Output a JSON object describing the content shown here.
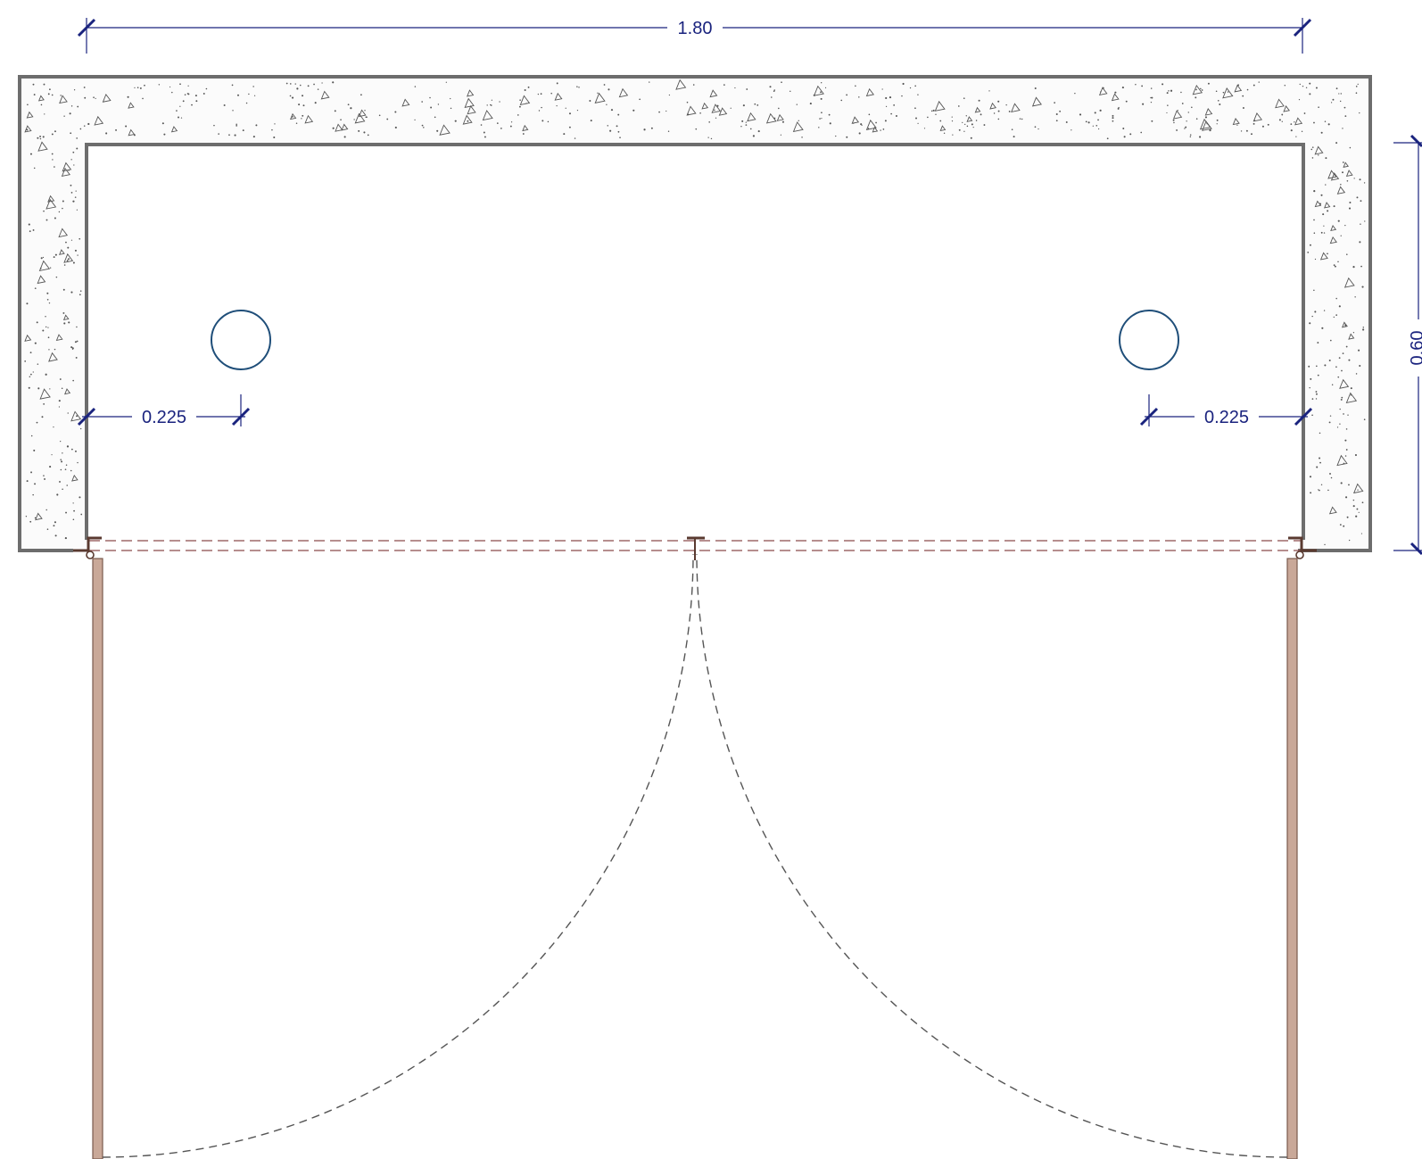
{
  "colors": {
    "dimension": "#1a237e",
    "wall": "#6d6d6d",
    "hatch": "#555555",
    "sink_outline": "#1f4e79",
    "door_leaf_fill": "#c9a898",
    "door_leaf_stroke": "#7a5a4e",
    "hidden_line": "#8a4a4a",
    "swing_arc": "#555555"
  },
  "dimensions": {
    "overall_width": "1.80",
    "depth": "0.60",
    "left_offset": "0.225",
    "right_offset": "0.225"
  },
  "elements": {
    "sinks": [
      {
        "name": "left-sink",
        "shape": "circle"
      },
      {
        "name": "right-sink",
        "shape": "circle"
      }
    ],
    "doors": [
      {
        "name": "left-cabinet-door",
        "swing": "dashed-arc"
      },
      {
        "name": "right-cabinet-door",
        "swing": "dashed-arc"
      }
    ],
    "countertop_material": "concrete-hatch"
  }
}
